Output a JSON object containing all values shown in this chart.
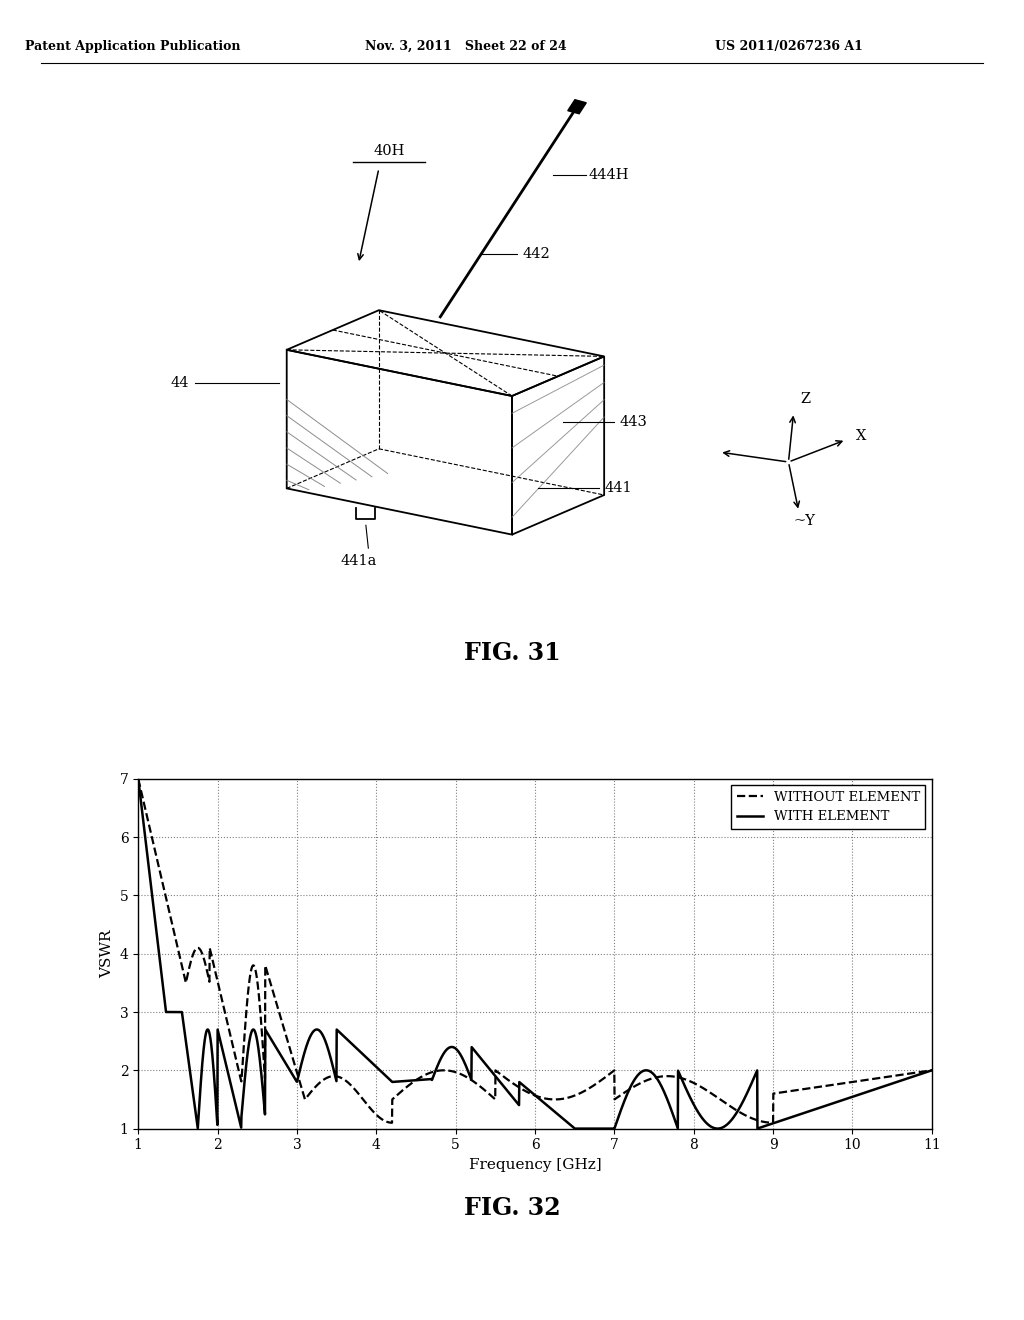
{
  "header_left": "Patent Application Publication",
  "header_mid": "Nov. 3, 2011   Sheet 22 of 24",
  "header_right": "US 2011/0267236 A1",
  "fig31_label": "FIG. 31",
  "fig32_label": "FIG. 32",
  "graph_xlabel": "Frequency [GHz]",
  "graph_ylabel": "VSWR",
  "graph_xlim": [
    1,
    11
  ],
  "graph_ylim": [
    1,
    7
  ],
  "graph_xticks": [
    1,
    2,
    3,
    4,
    5,
    6,
    7,
    8,
    9,
    10,
    11
  ],
  "graph_yticks": [
    1,
    2,
    3,
    4,
    5,
    6,
    7
  ],
  "legend_without": "WITHOUT ELEMENT",
  "legend_with": "WITH ELEMENT",
  "bg_color": "#ffffff",
  "line_color": "#000000"
}
